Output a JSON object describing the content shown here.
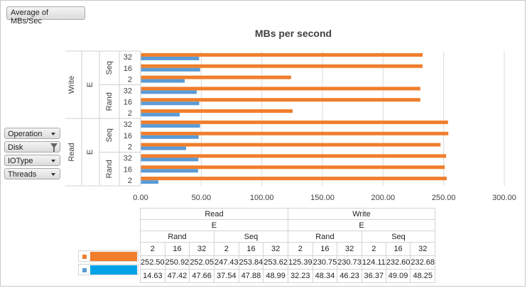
{
  "value_field": "Average of MBs/Sec",
  "field_buttons": [
    {
      "label": "Operation",
      "filtered": false
    },
    {
      "label": "Disk",
      "filtered": true
    },
    {
      "label": "IOType",
      "filtered": false
    },
    {
      "label": "Threads",
      "filtered": false
    }
  ],
  "colors": {
    "series1": "#f07e2b",
    "series2": "#5b9bd5",
    "legend2": "#00a3e8"
  },
  "chart_data": {
    "type": "bar",
    "orientation": "horizontal",
    "title": "MBs per second",
    "xlim": [
      0,
      300
    ],
    "x_ticks": [
      "0.00",
      "50.00",
      "100.00",
      "150.00",
      "200.00",
      "250.00",
      "300.00"
    ],
    "grid": true,
    "categories": [
      {
        "operation": "Read",
        "disk": "E",
        "iotype": "Rand",
        "threads": "2"
      },
      {
        "operation": "Read",
        "disk": "E",
        "iotype": "Rand",
        "threads": "16"
      },
      {
        "operation": "Read",
        "disk": "E",
        "iotype": "Rand",
        "threads": "32"
      },
      {
        "operation": "Read",
        "disk": "E",
        "iotype": "Seq",
        "threads": "2"
      },
      {
        "operation": "Read",
        "disk": "E",
        "iotype": "Seq",
        "threads": "16"
      },
      {
        "operation": "Read",
        "disk": "E",
        "iotype": "Seq",
        "threads": "32"
      },
      {
        "operation": "Write",
        "disk": "E",
        "iotype": "Rand",
        "threads": "2"
      },
      {
        "operation": "Write",
        "disk": "E",
        "iotype": "Rand",
        "threads": "16"
      },
      {
        "operation": "Write",
        "disk": "E",
        "iotype": "Rand",
        "threads": "32"
      },
      {
        "operation": "Write",
        "disk": "E",
        "iotype": "Seq",
        "threads": "2"
      },
      {
        "operation": "Write",
        "disk": "E",
        "iotype": "Seq",
        "threads": "16"
      },
      {
        "operation": "Write",
        "disk": "E",
        "iotype": "Seq",
        "threads": "32"
      }
    ],
    "series": [
      {
        "color": "#f07e2b",
        "values": [
          252.5,
          250.92,
          252.05,
          247.43,
          253.84,
          253.62,
          125.39,
          230.75,
          230.73,
          124.11,
          232.6,
          232.68
        ]
      },
      {
        "color": "#5b9bd5",
        "values": [
          14.63,
          47.42,
          47.66,
          37.54,
          47.88,
          48.99,
          32.23,
          48.34,
          46.23,
          36.37,
          49.09,
          48.25
        ]
      }
    ],
    "table": {
      "operations": [
        "Read",
        "Write"
      ],
      "disk": "E",
      "iotypes": [
        "Rand",
        "Seq"
      ],
      "threads": [
        "2",
        "16",
        "32"
      ],
      "rows": [
        [
          "252.50",
          "250.92",
          "252.05",
          "247.43",
          "253.84",
          "253.62",
          "125.39",
          "230.75",
          "230.73",
          "124.11",
          "232.60",
          "232.68"
        ],
        [
          "14.63",
          "47.42",
          "47.66",
          "37.54",
          "47.88",
          "48.99",
          "32.23",
          "48.34",
          "46.23",
          "36.37",
          "49.09",
          "48.25"
        ]
      ]
    }
  }
}
